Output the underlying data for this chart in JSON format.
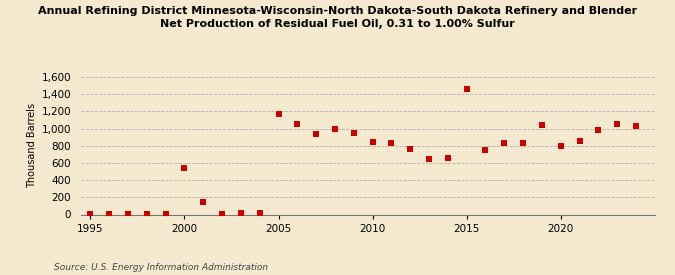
{
  "title": "Annual Refining District Minnesota-Wisconsin-North Dakota-South Dakota Refinery and Blender\nNet Production of Residual Fuel Oil, 0.31 to 1.00% Sulfur",
  "ylabel": "Thousand Barrels",
  "source": "Source: U.S. Energy Information Administration",
  "background_color": "#f5ead0",
  "years": [
    1995,
    1996,
    1997,
    1998,
    1999,
    2000,
    2001,
    2002,
    2003,
    2004,
    2005,
    2006,
    2007,
    2008,
    2009,
    2010,
    2011,
    2012,
    2013,
    2014,
    2015,
    2016,
    2017,
    2018,
    2019,
    2020,
    2021,
    2022,
    2023,
    2024
  ],
  "values": [
    5,
    5,
    5,
    5,
    5,
    540,
    150,
    10,
    20,
    20,
    1170,
    1050,
    940,
    1000,
    950,
    840,
    830,
    760,
    650,
    660,
    1460,
    750,
    830,
    830,
    1040,
    800,
    860,
    980,
    1050,
    1030
  ],
  "marker_color": "#cc0000",
  "marker_size": 5,
  "ylim": [
    0,
    1600
  ],
  "yticks": [
    0,
    200,
    400,
    600,
    800,
    1000,
    1200,
    1400,
    1600
  ],
  "xlim": [
    1994.5,
    2025
  ],
  "xticks": [
    1995,
    2000,
    2005,
    2010,
    2015,
    2020
  ]
}
